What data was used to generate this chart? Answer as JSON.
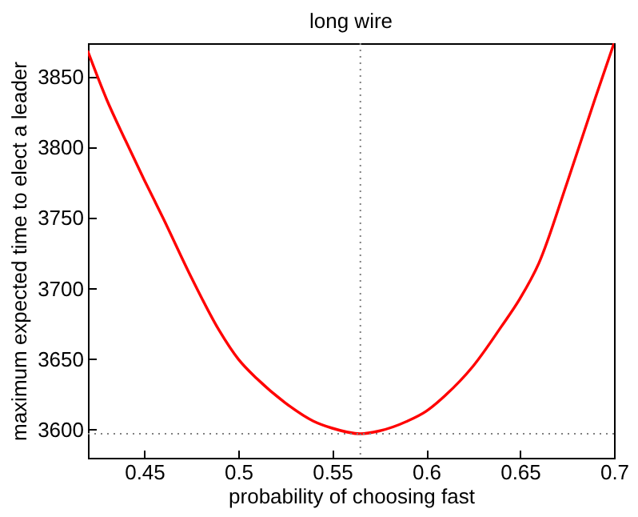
{
  "chart_data": {
    "type": "line",
    "title": "long wire",
    "xlabel": "probability of choosing fast",
    "ylabel": "maximum expected time to elect a leader",
    "x": [
      0.42,
      0.43,
      0.44,
      0.45,
      0.46,
      0.475,
      0.49,
      0.5,
      0.51,
      0.525,
      0.54,
      0.55,
      0.565,
      0.575,
      0.59,
      0.6,
      0.61,
      0.625,
      0.64,
      0.65,
      0.66,
      0.675,
      0.69,
      0.7
    ],
    "series": [
      {
        "color": "#ff0000",
        "values": [
          3868,
          3834,
          3805,
          3777,
          3750,
          3708,
          3670,
          3650,
          3636,
          3619,
          3606,
          3601,
          3597,
          3599,
          3606,
          3613,
          3624,
          3645,
          3673,
          3693,
          3718,
          3775,
          3835,
          3874
        ]
      }
    ],
    "xlim": [
      0.42,
      0.7
    ],
    "xticks": [
      0.45,
      0.5,
      0.55,
      0.6,
      0.65,
      0.7
    ],
    "ylim": [
      3580,
      3874
    ],
    "yticks": [
      3600,
      3650,
      3700,
      3750,
      3800,
      3850
    ],
    "grid": false,
    "marker": "none",
    "line_style": "solid",
    "legend": false,
    "ref_lines": [
      {
        "axis": "x",
        "value": 0.565,
        "color": "#808080",
        "line_style": "dotted"
      },
      {
        "axis": "y",
        "value": 3597,
        "color": "#808080",
        "line_style": "dotted"
      }
    ]
  }
}
